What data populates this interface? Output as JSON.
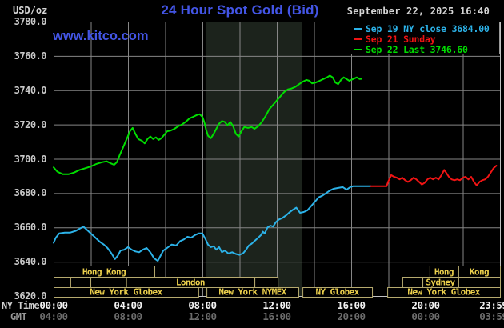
{
  "header": {
    "usd_oz": "USD/oz",
    "title": "24 Hour Spot Gold (Bid)",
    "datetime": "September 22, 2025 16:40",
    "watermark": "www.kitco.com"
  },
  "colors": {
    "background": "#000000",
    "grid": "#868686",
    "border": "#c2c2c2",
    "shade": "#1c231c",
    "title_blue": "#4355e5",
    "session_box_border": "#b5a96e",
    "session_text": "#ecd04c",
    "cyan": "#2cb2e8",
    "red": "#f01414",
    "green": "#00dd00"
  },
  "legend": {
    "items": [
      {
        "series": "cyan",
        "label": "Sep 19 NY close 3684.00"
      },
      {
        "series": "red",
        "label": "Sep 21 Sunday"
      },
      {
        "series": "green",
        "label": "Sep 22 Last 3746.60"
      }
    ]
  },
  "x_axis": {
    "row1_name": "NY Time",
    "row2_name": "GMT",
    "tick_hours": [
      0,
      4,
      8,
      12,
      16,
      20,
      23.65
    ],
    "ny_time_labels": [
      "00:00",
      "04:00",
      "08:00",
      "12:00",
      "16:00",
      "20:00",
      "23:59"
    ],
    "gmt_labels": [
      "04:00",
      "08:00",
      "12:00",
      "16:00",
      "20:00",
      "00:00",
      "03:59"
    ]
  },
  "chart_data": {
    "type": "line",
    "title": "24 Hour Spot Gold (Bid)",
    "ylabel": "USD/oz",
    "ylim": [
      3620,
      3780
    ],
    "y_step": 20,
    "x_hours": [
      0,
      24
    ],
    "x_grid_step_hours": 2,
    "grid": true,
    "legend_position": "top-right",
    "shaded_region_hours": [
      8.17,
      13.35
    ],
    "series": [
      {
        "name": "Sep 19 NY close",
        "close_value": 3684.0,
        "color_key": "cyan",
        "points": [
          [
            0,
            3651
          ],
          [
            0.12,
            3654
          ],
          [
            0.3,
            3656.5
          ],
          [
            0.6,
            3657
          ],
          [
            0.9,
            3657
          ],
          [
            1.2,
            3658
          ],
          [
            1.45,
            3659.5
          ],
          [
            1.6,
            3660.5
          ],
          [
            1.75,
            3659
          ],
          [
            1.9,
            3657.5
          ],
          [
            2.1,
            3655.5
          ],
          [
            2.3,
            3653.5
          ],
          [
            2.5,
            3651.5
          ],
          [
            2.7,
            3650
          ],
          [
            2.9,
            3648
          ],
          [
            3.1,
            3645
          ],
          [
            3.3,
            3641.5
          ],
          [
            3.45,
            3643.5
          ],
          [
            3.6,
            3646.5
          ],
          [
            3.8,
            3647
          ],
          [
            4,
            3648.5
          ],
          [
            4.2,
            3647
          ],
          [
            4.4,
            3646
          ],
          [
            4.6,
            3645.5
          ],
          [
            4.8,
            3647
          ],
          [
            5,
            3648
          ],
          [
            5.2,
            3645.5
          ],
          [
            5.4,
            3642
          ],
          [
            5.6,
            3640.5
          ],
          [
            5.75,
            3643.5
          ],
          [
            5.9,
            3646.5
          ],
          [
            6.1,
            3648
          ],
          [
            6.35,
            3650
          ],
          [
            6.6,
            3649.5
          ],
          [
            6.8,
            3652
          ],
          [
            7,
            3653
          ],
          [
            7.2,
            3654.5
          ],
          [
            7.4,
            3654
          ],
          [
            7.6,
            3655.5
          ],
          [
            7.8,
            3656.5
          ],
          [
            8,
            3656.5
          ],
          [
            8.15,
            3653.5
          ],
          [
            8.3,
            3650
          ],
          [
            8.45,
            3648.5
          ],
          [
            8.6,
            3649
          ],
          [
            8.75,
            3647
          ],
          [
            8.9,
            3648.5
          ],
          [
            9.05,
            3645.5
          ],
          [
            9.2,
            3646.5
          ],
          [
            9.4,
            3644.8
          ],
          [
            9.6,
            3645.5
          ],
          [
            9.8,
            3644.5
          ],
          [
            10,
            3644
          ],
          [
            10.2,
            3645
          ],
          [
            10.35,
            3647
          ],
          [
            10.5,
            3649.5
          ],
          [
            10.65,
            3650.5
          ],
          [
            10.8,
            3652
          ],
          [
            11,
            3654
          ],
          [
            11.15,
            3655.5
          ],
          [
            11.25,
            3657.5
          ],
          [
            11.35,
            3656.5
          ],
          [
            11.5,
            3660
          ],
          [
            11.65,
            3661
          ],
          [
            11.8,
            3660.5
          ],
          [
            11.95,
            3663
          ],
          [
            12.1,
            3664.5
          ],
          [
            12.3,
            3665.5
          ],
          [
            12.5,
            3667
          ],
          [
            12.7,
            3669
          ],
          [
            12.9,
            3670.5
          ],
          [
            13.05,
            3671.5
          ],
          [
            13.25,
            3668.5
          ],
          [
            13.45,
            3669
          ],
          [
            13.65,
            3670
          ],
          [
            13.85,
            3672.5
          ],
          [
            14.05,
            3675
          ],
          [
            14.25,
            3677.5
          ],
          [
            14.45,
            3678.5
          ],
          [
            14.65,
            3680
          ],
          [
            14.85,
            3681.5
          ],
          [
            15.05,
            3682.5
          ],
          [
            15.3,
            3683
          ],
          [
            15.55,
            3683.5
          ],
          [
            15.75,
            3682
          ],
          [
            15.95,
            3683.5
          ],
          [
            16.1,
            3684
          ],
          [
            17.05,
            3684
          ]
        ]
      },
      {
        "name": "Sep 21 Sunday",
        "color_key": "red",
        "points": [
          [
            17.05,
            3684
          ],
          [
            17.9,
            3684
          ],
          [
            18,
            3687
          ],
          [
            18.15,
            3690.5
          ],
          [
            18.3,
            3689.5
          ],
          [
            18.45,
            3689
          ],
          [
            18.6,
            3688
          ],
          [
            18.75,
            3689
          ],
          [
            18.9,
            3687.5
          ],
          [
            19.05,
            3686.5
          ],
          [
            19.2,
            3687.5
          ],
          [
            19.35,
            3689
          ],
          [
            19.5,
            3688
          ],
          [
            19.65,
            3686.5
          ],
          [
            19.8,
            3685
          ],
          [
            19.95,
            3686
          ],
          [
            20.1,
            3688
          ],
          [
            20.25,
            3689
          ],
          [
            20.4,
            3688
          ],
          [
            20.55,
            3689
          ],
          [
            20.7,
            3688
          ],
          [
            20.85,
            3690.5
          ],
          [
            21,
            3693.5
          ],
          [
            21.1,
            3692
          ],
          [
            21.25,
            3689.5
          ],
          [
            21.4,
            3688
          ],
          [
            21.55,
            3687.5
          ],
          [
            21.7,
            3688
          ],
          [
            21.85,
            3687.5
          ],
          [
            22,
            3689
          ],
          [
            22.15,
            3689.5
          ],
          [
            22.3,
            3688
          ],
          [
            22.45,
            3689.5
          ],
          [
            22.6,
            3686.5
          ],
          [
            22.75,
            3684.5
          ],
          [
            22.9,
            3686.5
          ],
          [
            23.05,
            3687.5
          ],
          [
            23.2,
            3688
          ],
          [
            23.35,
            3689.5
          ],
          [
            23.5,
            3692
          ],
          [
            23.65,
            3694.5
          ],
          [
            23.8,
            3696
          ]
        ]
      },
      {
        "name": "Sep 22 Last",
        "last_value": 3746.6,
        "color_key": "green",
        "points": [
          [
            0,
            3695
          ],
          [
            0.2,
            3692.5
          ],
          [
            0.5,
            3691
          ],
          [
            0.8,
            3691
          ],
          [
            1.1,
            3692
          ],
          [
            1.4,
            3693.5
          ],
          [
            1.7,
            3694.5
          ],
          [
            2,
            3695.5
          ],
          [
            2.3,
            3697
          ],
          [
            2.6,
            3698
          ],
          [
            2.85,
            3698.5
          ],
          [
            3.05,
            3697.5
          ],
          [
            3.25,
            3696.5
          ],
          [
            3.4,
            3698
          ],
          [
            3.55,
            3702
          ],
          [
            3.75,
            3707
          ],
          [
            3.95,
            3712
          ],
          [
            4.1,
            3716
          ],
          [
            4.25,
            3718
          ],
          [
            4.4,
            3714.5
          ],
          [
            4.55,
            3711.5
          ],
          [
            4.75,
            3710.5
          ],
          [
            4.9,
            3709
          ],
          [
            5.05,
            3711.5
          ],
          [
            5.2,
            3713
          ],
          [
            5.35,
            3711.5
          ],
          [
            5.5,
            3712.5
          ],
          [
            5.65,
            3711
          ],
          [
            5.8,
            3712
          ],
          [
            5.95,
            3714
          ],
          [
            6.1,
            3716
          ],
          [
            6.3,
            3716.5
          ],
          [
            6.5,
            3717.5
          ],
          [
            6.7,
            3719
          ],
          [
            6.9,
            3720
          ],
          [
            7.1,
            3721.5
          ],
          [
            7.3,
            3723.5
          ],
          [
            7.5,
            3724.5
          ],
          [
            7.7,
            3725.5
          ],
          [
            7.85,
            3726
          ],
          [
            8,
            3724.5
          ],
          [
            8.1,
            3721.5
          ],
          [
            8.2,
            3717
          ],
          [
            8.3,
            3713.5
          ],
          [
            8.45,
            3712
          ],
          [
            8.6,
            3714.5
          ],
          [
            8.75,
            3717.5
          ],
          [
            8.9,
            3720.5
          ],
          [
            9.05,
            3722
          ],
          [
            9.2,
            3721.5
          ],
          [
            9.35,
            3719.5
          ],
          [
            9.5,
            3721.5
          ],
          [
            9.65,
            3719
          ],
          [
            9.8,
            3714.5
          ],
          [
            9.95,
            3713
          ],
          [
            10.1,
            3716
          ],
          [
            10.25,
            3718.5
          ],
          [
            10.45,
            3718
          ],
          [
            10.65,
            3718.5
          ],
          [
            10.8,
            3717.5
          ],
          [
            11,
            3719
          ],
          [
            11.2,
            3721.5
          ],
          [
            11.4,
            3725
          ],
          [
            11.6,
            3729
          ],
          [
            11.8,
            3731.5
          ],
          [
            12,
            3734
          ],
          [
            12.2,
            3736.5
          ],
          [
            12.4,
            3739
          ],
          [
            12.6,
            3740.5
          ],
          [
            12.8,
            3741
          ],
          [
            13,
            3742
          ],
          [
            13.2,
            3743.5
          ],
          [
            13.4,
            3745
          ],
          [
            13.6,
            3746
          ],
          [
            13.75,
            3745.5
          ],
          [
            13.9,
            3744
          ],
          [
            14.1,
            3744.5
          ],
          [
            14.3,
            3745.5
          ],
          [
            14.5,
            3746.5
          ],
          [
            14.7,
            3747.5
          ],
          [
            14.85,
            3748.5
          ],
          [
            15,
            3747.5
          ],
          [
            15.15,
            3744.5
          ],
          [
            15.3,
            3743.5
          ],
          [
            15.45,
            3746
          ],
          [
            15.6,
            3747.5
          ],
          [
            15.75,
            3746.5
          ],
          [
            15.9,
            3745.5
          ],
          [
            16.1,
            3746.5
          ],
          [
            16.3,
            3747.5
          ],
          [
            16.45,
            3746.5
          ],
          [
            16.55,
            3746.6
          ]
        ]
      }
    ],
    "sessions": {
      "rows": [
        {
          "name": "asia-row",
          "cells": [
            {
              "from": 0,
              "to": 5.42,
              "label": "Hong Kong"
            },
            {
              "from": 20.21,
              "to": 21.76,
              "label": "Hong"
            },
            {
              "from": 21.76,
              "to": 24,
              "label": "Kong"
            }
          ]
        },
        {
          "name": "europe-row",
          "cells": [
            {
              "from": 0,
              "to": 0.9,
              "label": ""
            },
            {
              "from": 0.9,
              "to": 1.98,
              "label": ""
            },
            {
              "from": 1.98,
              "to": 3.9,
              "label": ""
            },
            {
              "from": 3.9,
              "to": 10.8,
              "label": "London"
            },
            {
              "from": 10.8,
              "to": 12.05,
              "label": ""
            },
            {
              "from": 18.75,
              "to": 19.83,
              "label": ""
            },
            {
              "from": 19.83,
              "to": 21.76,
              "label": "Sydney"
            },
            {
              "from": 21.76,
              "to": 24,
              "label": ""
            }
          ]
        },
        {
          "name": "us-row",
          "cells": [
            {
              "from": 0,
              "to": 7.78,
              "label": "New York Globex"
            },
            {
              "from": 8.22,
              "to": 13.16,
              "label": "New York NYMEX"
            },
            {
              "from": 13.38,
              "to": 17.12,
              "label": "NY Globex"
            },
            {
              "from": 17.94,
              "to": 24,
              "label": "New York Globex"
            }
          ]
        }
      ]
    }
  }
}
